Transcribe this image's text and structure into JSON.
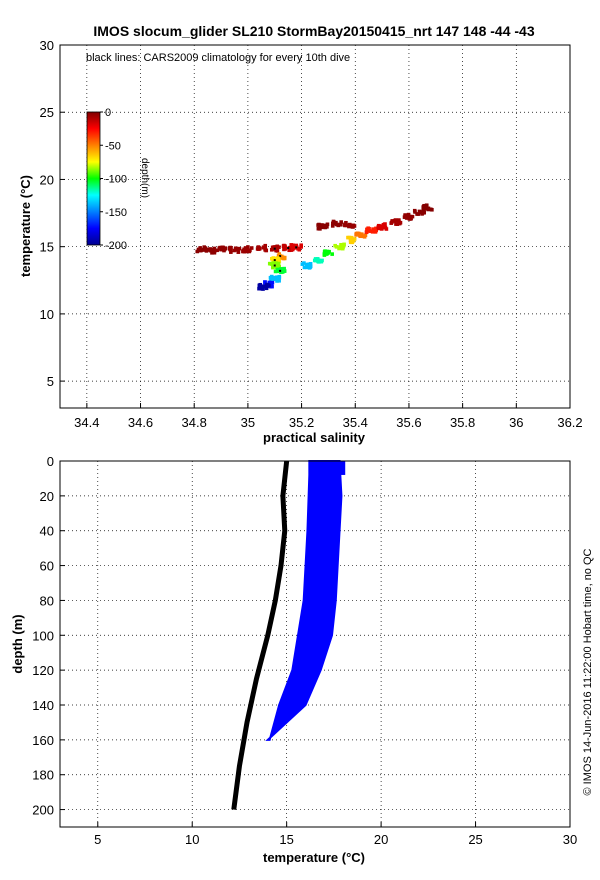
{
  "chart_data": [
    {
      "type": "scatter",
      "title": "IMOS slocum_glider SL210 StormBay20150415_nrt 147  148  -44  -43",
      "annotation": "black lines: CARS2009 climatology for every 10th dive",
      "xlabel": "practical salinity",
      "ylabel": "temperature (°C)",
      "xlim": [
        34.3,
        36.2
      ],
      "ylim": [
        3,
        30
      ],
      "xticks": [
        "34.4",
        "34.6",
        "34.8",
        "35",
        "35.2",
        "35.4",
        "35.6",
        "35.8",
        "36",
        "36.2"
      ],
      "yticks": [
        "5",
        "10",
        "15",
        "20",
        "25",
        "30"
      ],
      "grid": true,
      "colorbar": {
        "label": "depth(m)",
        "ticks": [
          "0",
          "-50",
          "-100",
          "-150",
          "-200"
        ],
        "range": [
          -200,
          0
        ],
        "colormap": [
          "#00008f",
          "#0000ff",
          "#00ffff",
          "#00ff00",
          "#ffff00",
          "#ff8000",
          "#ff0000",
          "#800000"
        ]
      },
      "series": [
        {
          "marker": "dot",
          "points": [
            [
              34.83,
              14.8,
              -2
            ],
            [
              34.86,
              14.7,
              -3
            ],
            [
              34.9,
              14.85,
              -4
            ],
            [
              34.95,
              14.75,
              -5
            ],
            [
              35.0,
              14.8,
              -6
            ],
            [
              35.05,
              14.9,
              -8
            ],
            [
              35.1,
              14.85,
              -10
            ],
            [
              35.15,
              14.9,
              -15
            ],
            [
              35.18,
              14.95,
              -20
            ],
            [
              35.12,
              14.3,
              -60
            ],
            [
              35.1,
              14.0,
              -80
            ],
            [
              35.1,
              13.6,
              -100
            ],
            [
              35.12,
              13.2,
              -120
            ],
            [
              35.1,
              12.6,
              -150
            ],
            [
              35.08,
              12.2,
              -170
            ],
            [
              35.06,
              12.0,
              -195
            ],
            [
              35.22,
              13.6,
              -150
            ],
            [
              35.26,
              14.0,
              -135
            ],
            [
              35.3,
              14.5,
              -115
            ],
            [
              35.34,
              15.0,
              -95
            ],
            [
              35.38,
              15.5,
              -75
            ],
            [
              35.42,
              15.9,
              -55
            ],
            [
              35.46,
              16.2,
              -35
            ],
            [
              35.5,
              16.5,
              -20
            ],
            [
              35.55,
              16.8,
              -8
            ],
            [
              35.6,
              17.2,
              -4
            ],
            [
              35.64,
              17.6,
              -2
            ],
            [
              35.67,
              17.9,
              -1
            ],
            [
              35.28,
              16.5,
              -2
            ],
            [
              35.33,
              16.7,
              -3
            ],
            [
              35.38,
              16.6,
              -5
            ]
          ]
        }
      ]
    },
    {
      "type": "scatter",
      "xlabel": "temperature (°C)",
      "ylabel": "depth (m)",
      "xlim": [
        3,
        30
      ],
      "ylim": [
        210,
        0
      ],
      "xticks": [
        "5",
        "10",
        "15",
        "20",
        "25",
        "30"
      ],
      "yticks": [
        "0",
        "20",
        "40",
        "60",
        "80",
        "100",
        "120",
        "140",
        "160",
        "180",
        "200"
      ],
      "grid": true,
      "series": [
        {
          "color": "#000000",
          "profile": [
            [
              15.0,
              0
            ],
            [
              14.8,
              20
            ],
            [
              14.9,
              40
            ],
            [
              14.7,
              60
            ],
            [
              14.4,
              80
            ],
            [
              14.0,
              100
            ],
            [
              13.4,
              125
            ],
            [
              12.9,
              150
            ],
            [
              12.5,
              175
            ],
            [
              12.2,
              200
            ]
          ]
        },
        {
          "color": "#0000ff",
          "profile": [
            [
              16.2,
              0
            ],
            [
              17.8,
              0
            ],
            [
              17.9,
              20
            ],
            [
              17.8,
              40
            ],
            [
              17.7,
              60
            ],
            [
              17.6,
              80
            ],
            [
              17.4,
              100
            ],
            [
              16.8,
              120
            ],
            [
              16.0,
              140
            ],
            [
              14.0,
              160
            ]
          ]
        }
      ]
    }
  ],
  "credit": "© IMOS 14-Jun-2016 11:22:00 Hobart time, no QC"
}
